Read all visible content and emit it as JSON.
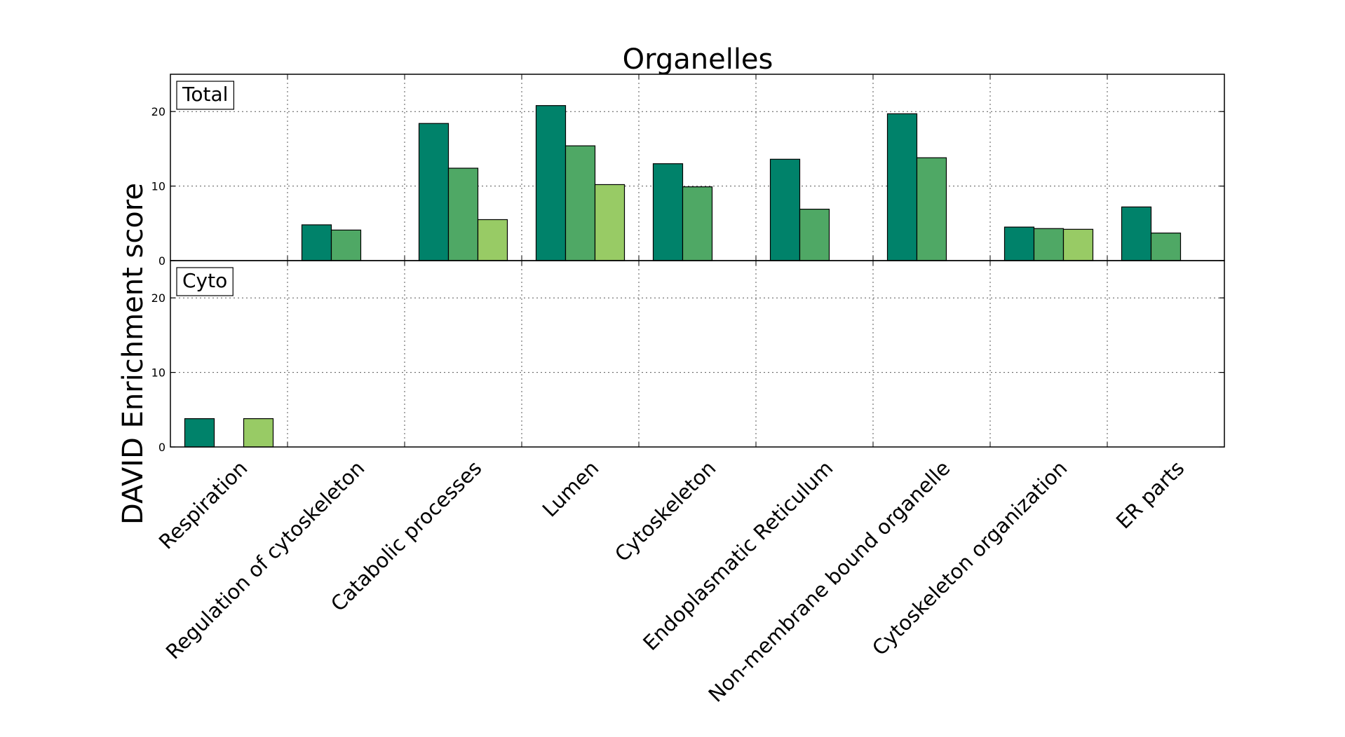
{
  "chart_data": {
    "type": "bar",
    "title": "Organelles",
    "ylabel": "DAVID Enrichment score",
    "xlabel": "",
    "categories": [
      "Respiration",
      "Regulation of cytoskeleton",
      "Catabolic processes",
      "Lumen",
      "Cytoskeleton",
      "Endoplasmatic Reticulum",
      "Non-membrane bound organelle",
      "Cytoskeleton organization",
      "ER parts"
    ],
    "series_colors": [
      "#00826a",
      "#4fa865",
      "#98cb65"
    ],
    "ylim": [
      0,
      25
    ],
    "yticks": [
      0,
      10,
      20
    ],
    "grid": true,
    "panels": [
      {
        "label": "Total",
        "series": [
          {
            "values": [
              0,
              4.8,
              18.4,
              20.8,
              13.0,
              13.6,
              19.7,
              4.5,
              7.2
            ]
          },
          {
            "values": [
              0,
              4.1,
              12.4,
              15.4,
              9.9,
              6.9,
              13.8,
              4.3,
              3.7
            ]
          },
          {
            "values": [
              0,
              0,
              5.5,
              10.2,
              0,
              0,
              0,
              4.2,
              0
            ]
          }
        ]
      },
      {
        "label": "Cyto",
        "series": [
          {
            "values": [
              3.8,
              0,
              0,
              0,
              0,
              0,
              0,
              0,
              0
            ]
          },
          {
            "values": [
              0,
              0,
              0,
              0,
              0,
              0,
              0,
              0,
              0
            ]
          },
          {
            "values": [
              3.8,
              0,
              0,
              0,
              0,
              0,
              0,
              0,
              0
            ]
          }
        ]
      }
    ]
  }
}
